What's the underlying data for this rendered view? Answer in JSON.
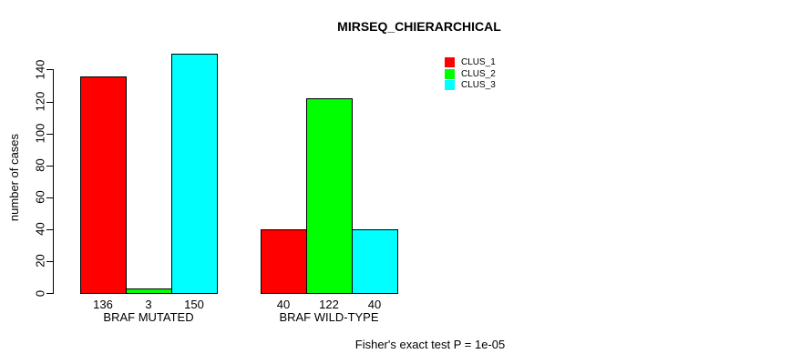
{
  "chart_data": {
    "type": "bar",
    "title": "MIRSEQ_CHIERARCHICAL",
    "ylabel": "number of cases",
    "xlabel": "",
    "ylim": [
      0,
      150
    ],
    "yticks": [
      0,
      20,
      40,
      60,
      80,
      100,
      120,
      140
    ],
    "grid": false,
    "legend_position": "top-right",
    "categories": [
      "BRAF MUTATED",
      "BRAF WILD-TYPE"
    ],
    "series": [
      {
        "name": "CLUS_1",
        "color": "#ff0000",
        "values": [
          136,
          40
        ]
      },
      {
        "name": "CLUS_2",
        "color": "#00ff00",
        "values": [
          3,
          122
        ]
      },
      {
        "name": "CLUS_3",
        "color": "#00ffff",
        "values": [
          150,
          40
        ]
      }
    ],
    "bar_value_labels": {
      "BRAF MUTATED": [
        136,
        3,
        150
      ],
      "BRAF WILD-TYPE": [
        40,
        122,
        40
      ]
    },
    "footnote": "Fisher's exact test P = 1e-05",
    "colors": {
      "background": "#ffffff",
      "bar_border": "#000000",
      "text": "#000000"
    }
  }
}
